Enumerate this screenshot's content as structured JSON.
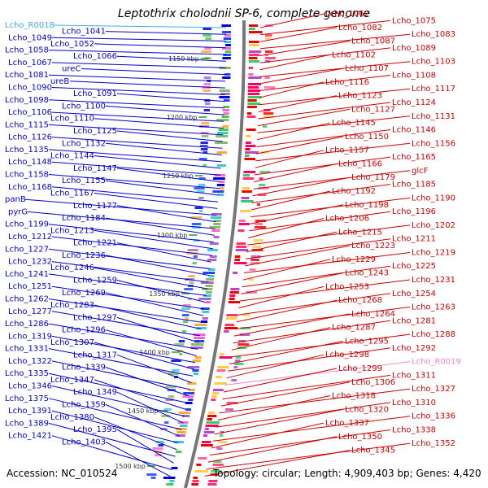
{
  "title": "Leptothrix cholodnii SP-6, complete genome",
  "accession": "Accession: NC_010524",
  "topology": "Topology: circular; Length: 4,909,403 bp; Genes: 4,420",
  "colors": {
    "left_label": "#0000cc",
    "right_label": "#cc0000",
    "rna_left": "#44aaee",
    "rna_right": "#ee88cc",
    "backbone": "#777777",
    "tick": "#229922"
  },
  "kbp_ticks": [
    "1150 kbp",
    "1200 kbp",
    "1250 kbp",
    "1300 kbp",
    "1350 kbp",
    "1400 kbp",
    "1450 kbp",
    "1500 kbp"
  ],
  "left_labels": [
    "Lcho_R0018",
    "Lcho_1041",
    "Lcho_1049",
    "Lcho_1052",
    "Lcho_1058",
    "Lcho_1066",
    "Lcho_1067",
    "ureC",
    "Lcho_1081",
    "ureB",
    "Lcho_1090",
    "Lcho_1091",
    "Lcho_1098",
    "Lcho_1100",
    "Lcho_1106",
    "Lcho_1110",
    "Lcho_1115",
    "Lcho_1125",
    "Lcho_1126",
    "Lcho_1132",
    "Lcho_1135",
    "Lcho_1144",
    "Lcho_1148",
    "Lcho_1147",
    "Lcho_1158",
    "Lcho_1155",
    "Lcho_1168",
    "Lcho_1167",
    "panB",
    "Lcho_1177",
    "pyrG",
    "Lcho_1184",
    "Lcho_1199",
    "Lcho_1213",
    "Lcho_1212",
    "Lcho_1221",
    "Lcho_1227",
    "Lcho_1236",
    "Lcho_1232",
    "Lcho_1246",
    "Lcho_1241",
    "Lcho_1259",
    "Lcho_1251",
    "Lcho_1269",
    "Lcho_1262",
    "Lcho_1283",
    "Lcho_1277",
    "Lcho_1297",
    "Lcho_1286",
    "Lcho_1296",
    "Lcho_1319",
    "Lcho_1307",
    "Lcho_1331",
    "Lcho_1317",
    "Lcho_1322",
    "Lcho_1339",
    "Lcho_1335",
    "Lcho_1347",
    "Lcho_1346",
    "Lcho_1349",
    "Lcho_1375",
    "Lcho_1359",
    "Lcho_1391",
    "Lcho_1380",
    "Lcho_1389",
    "Lcho_1395",
    "Lcho_1421",
    "Lcho_1403"
  ],
  "right_labels": [
    "Lcho_1062",
    "Lcho_1075",
    "Lcho_1082",
    "Lcho_1083",
    "Lcho_1087",
    "Lcho_1089",
    "Lcho_1102",
    "Lcho_1103",
    "Lcho_1107",
    "Lcho_1108",
    "Lcho_1116",
    "Lcho_1117",
    "Lcho_1123",
    "Lcho_1124",
    "Lcho_1127",
    "Lcho_1131",
    "Lcho_1145",
    "Lcho_1146",
    "Lcho_1150",
    "Lcho_1156",
    "Lcho_1157",
    "Lcho_1165",
    "Lcho_1166",
    "glcF",
    "Lcho_1179",
    "Lcho_1185",
    "Lcho_1192",
    "Lcho_1190",
    "Lcho_1198",
    "Lcho_1196",
    "Lcho_1206",
    "Lcho_1202",
    "Lcho_1215",
    "Lcho_1211",
    "Lcho_1223",
    "Lcho_1219",
    "Lcho_1229",
    "Lcho_1225",
    "Lcho_1243",
    "Lcho_1231",
    "Lcho_1253",
    "Lcho_1254",
    "Lcho_1268",
    "Lcho_1263",
    "Lcho_1264",
    "Lcho_1281",
    "Lcho_1287",
    "Lcho_1288",
    "Lcho_1295",
    "Lcho_1292",
    "Lcho_1298",
    "Lcho_R0019",
    "Lcho_1299",
    "Lcho_1311",
    "Lcho_1306",
    "Lcho_1327",
    "Lcho_1318",
    "Lcho_1310",
    "Lcho_1320",
    "Lcho_1336",
    "Lcho_1337",
    "Lcho_1338",
    "Lcho_1350",
    "Lcho_1352",
    "Lcho_1345"
  ]
}
